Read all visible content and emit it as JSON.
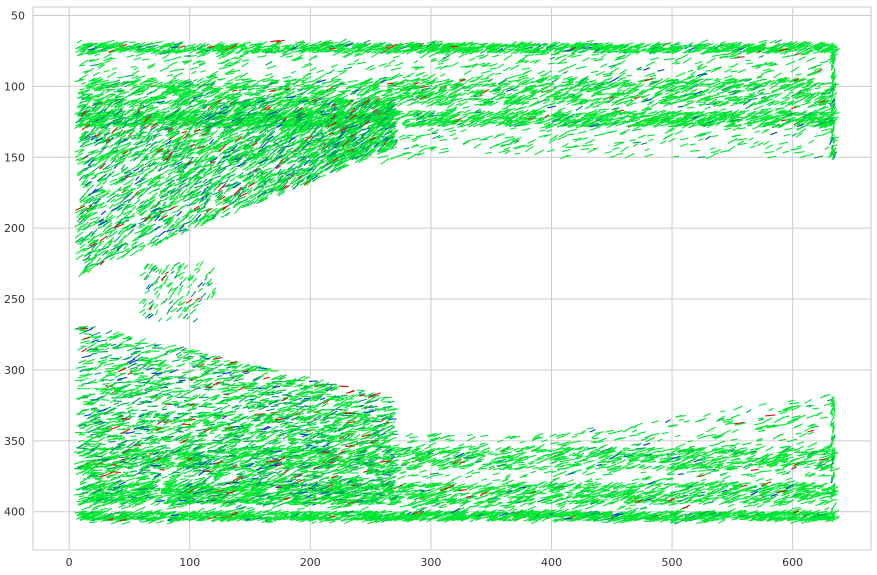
{
  "chart_data": {
    "type": "quiver",
    "title": "",
    "xlabel": "",
    "ylabel": "",
    "xlim": [
      -30,
      665
    ],
    "ylim": [
      427,
      44
    ],
    "y_inverted": true,
    "grid": true,
    "x_ticks": [
      0,
      100,
      200,
      300,
      400,
      500,
      600
    ],
    "y_ticks": [
      50,
      100,
      150,
      200,
      250,
      300,
      350,
      400
    ],
    "x_tick_labels": [
      "0",
      "100",
      "200",
      "300",
      "400",
      "500",
      "600"
    ],
    "y_tick_labels": [
      "50",
      "100",
      "150",
      "200",
      "250",
      "300",
      "350",
      "400"
    ],
    "colors": {
      "dominant": "#00e632",
      "secondary": "#009966",
      "accent_a": "#0033dd",
      "accent_b": "#dd1100",
      "grid": "#cccccc",
      "spine": "#cccccc"
    },
    "regions": [
      {
        "name": "upper-band",
        "x_range": [
          5,
          635
        ],
        "y_range": [
          68,
          152
        ],
        "color": "dominant",
        "note": "dense horizontal flow"
      },
      {
        "name": "upper-left-wedge",
        "x_range": [
          5,
          270
        ],
        "y_range": [
          68,
          230
        ],
        "color": "dominant",
        "note": "diagonal sheared flow, upper left"
      },
      {
        "name": "lower-band",
        "x_range": [
          5,
          635
        ],
        "y_range": [
          316,
          408
        ],
        "color": "dominant",
        "note": "dense horizontal flow"
      },
      {
        "name": "lower-left-wedge",
        "x_range": [
          5,
          270
        ],
        "y_range": [
          250,
          408
        ],
        "color": "dominant",
        "note": "diagonal sheared flow, lower left"
      }
    ]
  }
}
